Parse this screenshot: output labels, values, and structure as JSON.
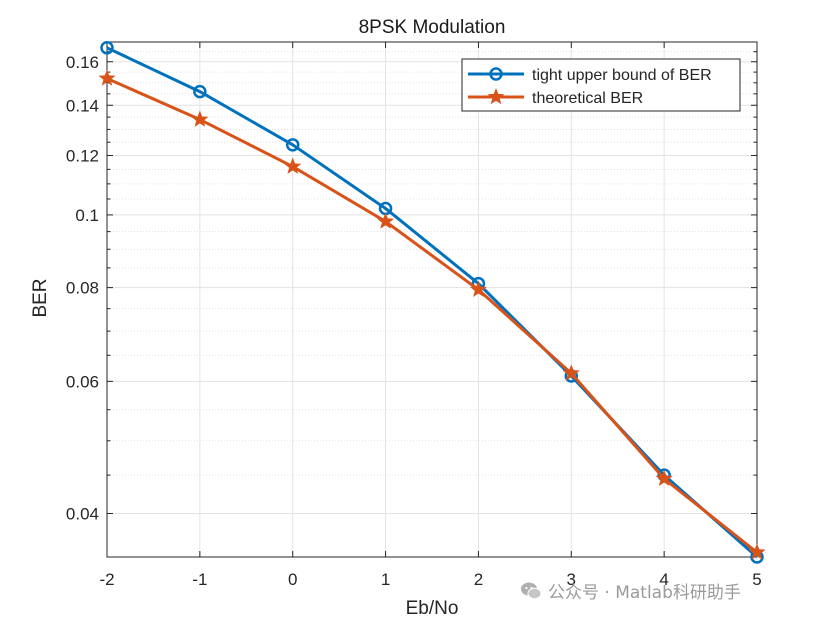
{
  "chart_data": {
    "type": "line",
    "title": "8PSK Modulation",
    "xlabel": "Eb/No",
    "ylabel": "BER",
    "yscale": "log",
    "x": [
      -2,
      -1,
      0,
      1,
      2,
      3,
      4,
      5
    ],
    "xlim": [
      -2,
      5
    ],
    "ylim": [
      0.035,
      0.17
    ],
    "xticks": [
      "-2",
      "-1",
      "0",
      "1",
      "2",
      "3",
      "4",
      "5"
    ],
    "yticks": [
      {
        "value": 0.04,
        "label": "0.04"
      },
      {
        "value": 0.06,
        "label": "0.06"
      },
      {
        "value": 0.08,
        "label": "0.08"
      },
      {
        "value": 0.1,
        "label": "0.1"
      },
      {
        "value": 0.12,
        "label": "0.12"
      },
      {
        "value": 0.14,
        "label": "0.14"
      },
      {
        "value": 0.16,
        "label": "0.16"
      }
    ],
    "minor_yticks": [
      0.035,
      0.045,
      0.05,
      0.055,
      0.065,
      0.07,
      0.075,
      0.085,
      0.09,
      0.095,
      0.105,
      0.11,
      0.115,
      0.125,
      0.13,
      0.135,
      0.145,
      0.15,
      0.155,
      0.165
    ],
    "grid": true,
    "legend_position": "top-right",
    "series": [
      {
        "name": "tight upper bound of BER",
        "marker": "circle",
        "color": "#0072BD",
        "values": [
          0.167,
          0.146,
          0.124,
          0.102,
          0.081,
          0.061,
          0.045,
          0.035
        ]
      },
      {
        "name": "theoretical BER",
        "marker": "star",
        "color": "#D95319",
        "values": [
          0.152,
          0.134,
          0.116,
          0.098,
          0.0795,
          0.0615,
          0.0445,
          0.0355
        ]
      }
    ]
  },
  "watermark": {
    "text": "公众号 · Matlab科研助手",
    "icon": "wechat-icon"
  }
}
